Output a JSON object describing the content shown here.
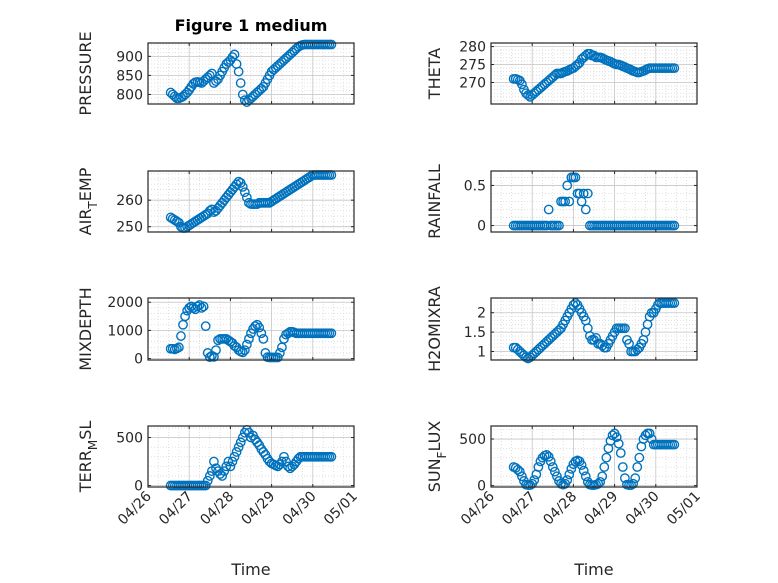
{
  "figure": {
    "title": "Figure 1 medium",
    "xlabel": "Time",
    "xticks": [
      "04/26",
      "04/27",
      "04/28",
      "04/29",
      "04/30",
      "05/01"
    ],
    "marker_color": "#0072BD"
  },
  "chart_data": [
    {
      "type": "scatter",
      "ylabel": "PRESSURE",
      "sub": "",
      "ylabel_tail": "",
      "xlim": [
        0,
        5
      ],
      "ylim": [
        775,
        935
      ],
      "yticks": [
        800,
        850,
        900
      ],
      "x": [
        0.55,
        0.6,
        0.65,
        0.7,
        0.75,
        0.8,
        0.85,
        0.9,
        0.95,
        1.0,
        1.05,
        1.1,
        1.15,
        1.2,
        1.25,
        1.3,
        1.35,
        1.4,
        1.45,
        1.5,
        1.55,
        1.6,
        1.65,
        1.7,
        1.75,
        1.8,
        1.85,
        1.9,
        1.95,
        2.0,
        2.05,
        2.1,
        2.15,
        2.2,
        2.25,
        2.3,
        2.35,
        2.4,
        2.45,
        2.5,
        2.55,
        2.6,
        2.65,
        2.7,
        2.75,
        2.8,
        2.85,
        2.9,
        2.95,
        3.0,
        3.05,
        3.1,
        3.15,
        3.2,
        3.25,
        3.3,
        3.35,
        3.4,
        3.45,
        3.5,
        3.55,
        3.6,
        3.65,
        3.7,
        3.75,
        3.8,
        3.85,
        3.9,
        3.95,
        4.0,
        4.05,
        4.1,
        4.15,
        4.2,
        4.25,
        4.3,
        4.35,
        4.4,
        4.45
      ],
      "y": [
        805,
        800,
        795,
        790,
        790,
        792,
        795,
        800,
        805,
        812,
        820,
        828,
        832,
        833,
        832,
        830,
        835,
        840,
        845,
        850,
        855,
        830,
        835,
        840,
        850,
        860,
        870,
        880,
        885,
        890,
        898,
        905,
        880,
        860,
        830,
        800,
        785,
        780,
        785,
        790,
        795,
        800,
        805,
        810,
        815,
        820,
        830,
        840,
        850,
        860,
        865,
        870,
        875,
        880,
        885,
        890,
        895,
        900,
        905,
        910,
        915,
        920,
        925,
        928,
        930,
        931,
        931,
        931,
        931,
        931,
        931,
        931,
        931,
        931,
        931,
        931,
        931,
        931,
        931
      ]
    },
    {
      "type": "scatter",
      "ylabel": "THETA",
      "sub": "",
      "ylabel_tail": "",
      "xlim": [
        0,
        5
      ],
      "ylim": [
        264,
        281
      ],
      "yticks": [
        270,
        275,
        280
      ],
      "x": [
        0.55,
        0.6,
        0.65,
        0.7,
        0.75,
        0.8,
        0.85,
        0.9,
        0.95,
        1.0,
        1.05,
        1.1,
        1.15,
        1.2,
        1.25,
        1.3,
        1.35,
        1.4,
        1.45,
        1.5,
        1.55,
        1.6,
        1.65,
        1.7,
        1.75,
        1.8,
        1.85,
        1.9,
        1.95,
        2.0,
        2.05,
        2.1,
        2.15,
        2.2,
        2.25,
        2.3,
        2.35,
        2.4,
        2.45,
        2.5,
        2.55,
        2.6,
        2.65,
        2.7,
        2.75,
        2.8,
        2.85,
        2.9,
        2.95,
        3.0,
        3.05,
        3.1,
        3.15,
        3.2,
        3.25,
        3.3,
        3.35,
        3.4,
        3.45,
        3.5,
        3.55,
        3.6,
        3.65,
        3.7,
        3.75,
        3.8,
        3.85,
        3.9,
        3.95,
        4.0,
        4.05,
        4.1,
        4.15,
        4.2,
        4.25,
        4.3,
        4.35,
        4.4,
        4.45
      ],
      "y": [
        271,
        271,
        270.8,
        270.5,
        269.5,
        268,
        267,
        266.5,
        266,
        266.5,
        267,
        267.5,
        268,
        268.5,
        269,
        269.5,
        270,
        270.5,
        271,
        271.5,
        272,
        272.5,
        272.5,
        272.5,
        272.8,
        273,
        273.2,
        273.5,
        273.8,
        274,
        274.5,
        275,
        275.5,
        276.5,
        277,
        277.5,
        278,
        278,
        277.5,
        277.5,
        277,
        277,
        277,
        276.8,
        276.5,
        276.2,
        276,
        275.8,
        275.5,
        275.2,
        275,
        275,
        274.8,
        274.5,
        274.3,
        274,
        273.8,
        273.5,
        273.2,
        273,
        272.8,
        272.8,
        273,
        273.2,
        273.5,
        273.8,
        274,
        274,
        274,
        274,
        274,
        274,
        274,
        274,
        274,
        274,
        274,
        274,
        274
      ]
    },
    {
      "type": "scatter",
      "ylabel": "AIR",
      "sub": "T",
      "ylabel_tail": "EMP",
      "xlim": [
        0,
        5
      ],
      "ylim": [
        248,
        271
      ],
      "yticks": [
        250,
        260
      ],
      "x": [
        0.55,
        0.6,
        0.65,
        0.7,
        0.75,
        0.8,
        0.85,
        0.9,
        0.95,
        1.0,
        1.05,
        1.1,
        1.15,
        1.2,
        1.25,
        1.3,
        1.35,
        1.4,
        1.45,
        1.5,
        1.55,
        1.6,
        1.65,
        1.7,
        1.75,
        1.8,
        1.85,
        1.9,
        1.95,
        2.0,
        2.05,
        2.1,
        2.15,
        2.2,
        2.25,
        2.3,
        2.35,
        2.4,
        2.45,
        2.5,
        2.55,
        2.6,
        2.65,
        2.7,
        2.75,
        2.8,
        2.85,
        2.9,
        2.95,
        3.0,
        3.05,
        3.1,
        3.15,
        3.2,
        3.25,
        3.3,
        3.35,
        3.4,
        3.45,
        3.5,
        3.55,
        3.6,
        3.65,
        3.7,
        3.75,
        3.8,
        3.85,
        3.9,
        3.95,
        4.0,
        4.05,
        4.1,
        4.15,
        4.2,
        4.25,
        4.3,
        4.35,
        4.4,
        4.45
      ],
      "y": [
        253.5,
        253,
        252.5,
        252,
        251.5,
        250,
        249.5,
        249.5,
        250,
        250.5,
        251,
        251.5,
        252,
        252.5,
        253,
        253.5,
        254,
        254.5,
        255,
        256,
        256.5,
        255.5,
        256,
        257,
        258,
        259,
        260,
        261,
        262,
        263,
        264,
        265,
        266,
        267,
        266.5,
        265,
        263,
        261,
        259,
        258.5,
        258.5,
        258.5,
        258.5,
        259,
        259,
        259,
        259,
        259,
        259,
        259.5,
        260,
        260.5,
        261,
        261.5,
        262,
        262.5,
        263,
        263.5,
        264,
        264.5,
        265,
        265.5,
        266,
        266.5,
        267,
        267.5,
        268,
        268.5,
        269,
        269.5,
        269.5,
        269.5,
        269.5,
        269.5,
        269.5,
        269.5,
        269.5,
        269.5,
        269.5
      ]
    },
    {
      "type": "scatter",
      "ylabel": "RAINFALL",
      "sub": "",
      "ylabel_tail": "",
      "xlim": [
        0,
        5
      ],
      "ylim": [
        -0.08,
        0.68
      ],
      "yticks": [
        0,
        0.5
      ],
      "x": [
        0.55,
        0.6,
        0.65,
        0.7,
        0.75,
        0.8,
        0.85,
        0.9,
        0.95,
        1.0,
        1.05,
        1.1,
        1.15,
        1.2,
        1.25,
        1.3,
        1.35,
        1.4,
        1.45,
        1.5,
        1.55,
        1.6,
        1.65,
        1.7,
        1.75,
        1.8,
        1.85,
        1.9,
        1.95,
        2.0,
        2.05,
        2.1,
        2.15,
        2.2,
        2.25,
        2.3,
        2.35,
        2.4,
        2.45,
        2.5,
        2.55,
        2.6,
        2.65,
        2.7,
        2.75,
        2.8,
        2.85,
        2.9,
        2.95,
        3.0,
        3.05,
        3.1,
        3.15,
        3.2,
        3.25,
        3.3,
        3.35,
        3.4,
        3.45,
        3.5,
        3.55,
        3.6,
        3.65,
        3.7,
        3.75,
        3.8,
        3.85,
        3.9,
        3.95,
        4.0,
        4.05,
        4.1,
        4.15,
        4.2,
        4.25,
        4.3,
        4.35,
        4.4,
        4.45
      ],
      "y": [
        0,
        0,
        0,
        0,
        0,
        0,
        0,
        0,
        0,
        0,
        0,
        0,
        0,
        0,
        0,
        0,
        0,
        0.2,
        0,
        0,
        0,
        0,
        0,
        0.3,
        0.3,
        0.3,
        0.5,
        0.3,
        0.6,
        0.6,
        0.6,
        0.4,
        0.4,
        0.3,
        0.4,
        0.2,
        0.4,
        0,
        0,
        0,
        0,
        0,
        0,
        0,
        0,
        0,
        0,
        0,
        0,
        0,
        0,
        0,
        0,
        0,
        0,
        0,
        0,
        0,
        0,
        0,
        0,
        0,
        0,
        0,
        0,
        0,
        0,
        0,
        0,
        0,
        0,
        0,
        0,
        0,
        0,
        0,
        0,
        0,
        0
      ]
    },
    {
      "type": "scatter",
      "ylabel": "MIXDEPTH",
      "sub": "",
      "ylabel_tail": "",
      "xlim": [
        0,
        5
      ],
      "ylim": [
        -50,
        2150
      ],
      "yticks": [
        0,
        1000,
        2000
      ],
      "x": [
        0.55,
        0.6,
        0.65,
        0.7,
        0.75,
        0.8,
        0.85,
        0.9,
        0.95,
        1.0,
        1.05,
        1.1,
        1.15,
        1.2,
        1.25,
        1.3,
        1.35,
        1.4,
        1.45,
        1.5,
        1.55,
        1.6,
        1.65,
        1.7,
        1.75,
        1.8,
        1.85,
        1.9,
        1.95,
        2.0,
        2.05,
        2.1,
        2.15,
        2.2,
        2.25,
        2.3,
        2.35,
        2.4,
        2.45,
        2.5,
        2.55,
        2.6,
        2.65,
        2.7,
        2.75,
        2.8,
        2.85,
        2.9,
        2.95,
        3.0,
        3.05,
        3.1,
        3.15,
        3.2,
        3.25,
        3.3,
        3.35,
        3.4,
        3.45,
        3.5,
        3.55,
        3.6,
        3.65,
        3.7,
        3.75,
        3.8,
        3.85,
        3.9,
        3.95,
        4.0,
        4.05,
        4.1,
        4.15,
        4.2,
        4.25,
        4.3,
        4.35,
        4.4,
        4.45
      ],
      "y": [
        350,
        350,
        330,
        360,
        400,
        800,
        1200,
        1500,
        1700,
        1800,
        1850,
        1800,
        1750,
        1850,
        1900,
        1800,
        1850,
        1150,
        200,
        50,
        100,
        60,
        300,
        650,
        700,
        700,
        700,
        700,
        650,
        600,
        550,
        450,
        400,
        300,
        250,
        220,
        300,
        500,
        700,
        900,
        1050,
        1150,
        1200,
        1100,
        900,
        700,
        200,
        50,
        40,
        40,
        40,
        40,
        40,
        200,
        400,
        700,
        850,
        900,
        950,
        950,
        930,
        900,
        900,
        900,
        900,
        900,
        900,
        900,
        900,
        900,
        900,
        900,
        900,
        900,
        900,
        900,
        900,
        900,
        900
      ]
    },
    {
      "type": "scatter",
      "ylabel": "H2OMIXRA",
      "sub": "",
      "ylabel_tail": "",
      "xlim": [
        0,
        5
      ],
      "ylim": [
        0.78,
        2.38
      ],
      "yticks": [
        1,
        1.5,
        2
      ],
      "x": [
        0.55,
        0.6,
        0.65,
        0.7,
        0.75,
        0.8,
        0.85,
        0.9,
        0.95,
        1.0,
        1.05,
        1.1,
        1.15,
        1.2,
        1.25,
        1.3,
        1.35,
        1.4,
        1.45,
        1.5,
        1.55,
        1.6,
        1.65,
        1.7,
        1.75,
        1.8,
        1.85,
        1.9,
        1.95,
        2.0,
        2.05,
        2.1,
        2.15,
        2.2,
        2.25,
        2.3,
        2.35,
        2.4,
        2.45,
        2.5,
        2.55,
        2.6,
        2.65,
        2.7,
        2.75,
        2.8,
        2.85,
        2.9,
        2.95,
        3.0,
        3.05,
        3.1,
        3.15,
        3.2,
        3.25,
        3.3,
        3.35,
        3.4,
        3.45,
        3.5,
        3.55,
        3.6,
        3.65,
        3.7,
        3.75,
        3.8,
        3.85,
        3.9,
        3.95,
        4.0,
        4.05,
        4.1,
        4.15,
        4.2,
        4.25,
        4.3,
        4.35,
        4.4,
        4.45
      ],
      "y": [
        1.1,
        1.1,
        1.05,
        1.0,
        0.95,
        0.9,
        0.85,
        0.82,
        0.85,
        0.9,
        0.95,
        1.0,
        1.05,
        1.1,
        1.15,
        1.2,
        1.25,
        1.3,
        1.35,
        1.4,
        1.45,
        1.5,
        1.55,
        1.6,
        1.7,
        1.8,
        1.9,
        2.0,
        2.1,
        2.2,
        2.25,
        2.2,
        2.1,
        2.0,
        1.9,
        1.8,
        1.6,
        1.4,
        1.3,
        1.3,
        1.35,
        1.2,
        1.2,
        1.15,
        1.1,
        1.1,
        1.2,
        1.3,
        1.4,
        1.5,
        1.6,
        1.6,
        1.6,
        1.6,
        1.6,
        1.3,
        1.2,
        1.0,
        1.0,
        1.0,
        1.05,
        1.1,
        1.2,
        1.3,
        1.5,
        1.7,
        1.9,
        2.0,
        2.0,
        2.1,
        2.2,
        2.25,
        2.25,
        2.25,
        2.25,
        2.25,
        2.25,
        2.25,
        2.25
      ]
    },
    {
      "type": "scatter",
      "ylabel": "TERR",
      "sub": "M",
      "ylabel_tail": "SL",
      "xlim": [
        0,
        5
      ],
      "ylim": [
        -15,
        620
      ],
      "yticks": [
        0,
        500
      ],
      "x": [
        0.55,
        0.6,
        0.65,
        0.7,
        0.75,
        0.8,
        0.85,
        0.9,
        0.95,
        1.0,
        1.05,
        1.1,
        1.15,
        1.2,
        1.25,
        1.3,
        1.35,
        1.4,
        1.45,
        1.5,
        1.55,
        1.6,
        1.65,
        1.7,
        1.75,
        1.8,
        1.85,
        1.9,
        1.95,
        2.0,
        2.05,
        2.1,
        2.15,
        2.2,
        2.25,
        2.3,
        2.35,
        2.4,
        2.45,
        2.5,
        2.55,
        2.6,
        2.65,
        2.7,
        2.75,
        2.8,
        2.85,
        2.9,
        2.95,
        3.0,
        3.05,
        3.1,
        3.15,
        3.2,
        3.25,
        3.3,
        3.35,
        3.4,
        3.45,
        3.5,
        3.55,
        3.6,
        3.65,
        3.7,
        3.75,
        3.8,
        3.85,
        3.9,
        3.95,
        4.0,
        4.05,
        4.1,
        4.15,
        4.2,
        4.25,
        4.3,
        4.35,
        4.4,
        4.45
      ],
      "y": [
        0,
        0,
        0,
        0,
        0,
        0,
        0,
        0,
        0,
        0,
        0,
        0,
        0,
        0,
        0,
        0,
        0,
        0,
        50,
        100,
        150,
        250,
        180,
        150,
        120,
        100,
        150,
        200,
        250,
        200,
        250,
        300,
        350,
        400,
        450,
        500,
        550,
        580,
        550,
        500,
        520,
        480,
        450,
        420,
        380,
        350,
        320,
        280,
        250,
        230,
        220,
        210,
        200,
        220,
        250,
        300,
        250,
        200,
        180,
        200,
        220,
        250,
        280,
        300,
        300,
        300,
        300,
        300,
        300,
        300,
        300,
        300,
        300,
        300,
        300,
        300,
        300,
        300,
        300
      ]
    },
    {
      "type": "scatter",
      "ylabel": "SUN",
      "sub": "F",
      "ylabel_tail": "LUX",
      "xlim": [
        0,
        5
      ],
      "ylim": [
        -15,
        640
      ],
      "yticks": [
        0,
        500
      ],
      "x": [
        0.55,
        0.6,
        0.65,
        0.7,
        0.75,
        0.8,
        0.85,
        0.9,
        0.95,
        1.0,
        1.05,
        1.1,
        1.15,
        1.2,
        1.25,
        1.3,
        1.35,
        1.4,
        1.45,
        1.5,
        1.55,
        1.6,
        1.65,
        1.7,
        1.75,
        1.8,
        1.85,
        1.9,
        1.95,
        2.0,
        2.05,
        2.1,
        2.15,
        2.2,
        2.25,
        2.3,
        2.35,
        2.4,
        2.45,
        2.5,
        2.55,
        2.6,
        2.65,
        2.7,
        2.75,
        2.8,
        2.85,
        2.9,
        2.95,
        3.0,
        3.05,
        3.1,
        3.15,
        3.2,
        3.25,
        3.3,
        3.35,
        3.4,
        3.45,
        3.5,
        3.55,
        3.6,
        3.65,
        3.7,
        3.75,
        3.8,
        3.85,
        3.9,
        3.95,
        4.0,
        4.05,
        4.1,
        4.15,
        4.2,
        4.25,
        4.3,
        4.35,
        4.4,
        4.45
      ],
      "y": [
        200,
        190,
        170,
        150,
        100,
        50,
        10,
        5,
        5,
        20,
        60,
        120,
        200,
        260,
        300,
        320,
        330,
        310,
        260,
        200,
        150,
        100,
        50,
        20,
        10,
        20,
        60,
        120,
        180,
        230,
        260,
        270,
        260,
        220,
        160,
        100,
        40,
        10,
        5,
        5,
        10,
        20,
        40,
        100,
        200,
        300,
        400,
        480,
        540,
        560,
        520,
        450,
        350,
        200,
        80,
        10,
        5,
        5,
        20,
        80,
        200,
        300,
        420,
        500,
        540,
        560,
        560,
        500,
        440,
        440,
        440,
        440,
        440,
        440,
        440,
        440,
        440,
        440,
        440
      ]
    }
  ]
}
